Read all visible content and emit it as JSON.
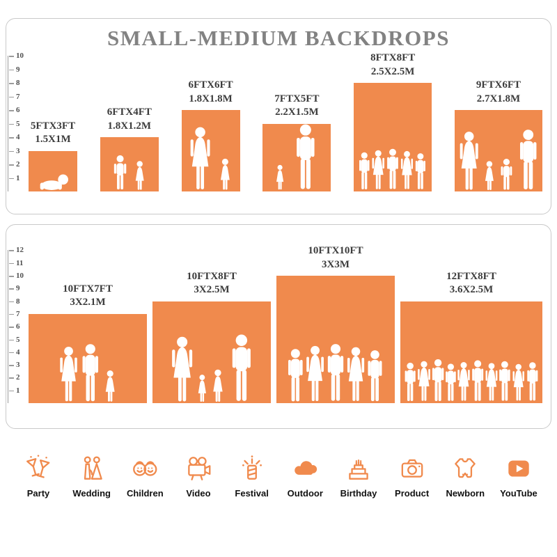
{
  "title": "SMALL-MEDIUM BACKDROPS",
  "colors": {
    "accent": "#F08A4D",
    "panel_border": "#C9C9C9",
    "title_gray": "#828282",
    "label_dark": "#3C3C3C"
  },
  "top_panel": {
    "ruler": [
      "1",
      "2",
      "3",
      "4",
      "5",
      "6",
      "7",
      "8",
      "9",
      "10"
    ],
    "backdrops": [
      {
        "label_ft": "5FTX3FT",
        "label_m": "1.5X1M",
        "w_ft": 5,
        "h_ft": 3
      },
      {
        "label_ft": "6FTX4FT",
        "label_m": "1.8X1.2M",
        "w_ft": 6,
        "h_ft": 4
      },
      {
        "label_ft": "6FTX6FT",
        "label_m": "1.8X1.8M",
        "w_ft": 6,
        "h_ft": 6
      },
      {
        "label_ft": "7FTX5FT",
        "label_m": "2.2X1.5M",
        "w_ft": 7,
        "h_ft": 5
      },
      {
        "label_ft": "8FTX8FT",
        "label_m": "2.5X2.5M",
        "w_ft": 8,
        "h_ft": 8
      },
      {
        "label_ft": "9FTX6FT",
        "label_m": "2.7X1.8M",
        "w_ft": 9,
        "h_ft": 6
      }
    ]
  },
  "bottom_panel": {
    "ruler": [
      "1",
      "2",
      "3",
      "4",
      "5",
      "6",
      "7",
      "8",
      "9",
      "10",
      "11",
      "12"
    ],
    "backdrops": [
      {
        "label_ft": "10FTX7FT",
        "label_m": "3X2.1M",
        "w_ft": 10,
        "h_ft": 7
      },
      {
        "label_ft": "10FTX8FT",
        "label_m": "3X2.5M",
        "w_ft": 10,
        "h_ft": 8
      },
      {
        "label_ft": "10FTX10FT",
        "label_m": "3X3M",
        "w_ft": 10,
        "h_ft": 10
      },
      {
        "label_ft": "12FTX8FT",
        "label_m": "3.6X2.5M",
        "w_ft": 12,
        "h_ft": 8
      }
    ]
  },
  "categories": [
    {
      "label": "Party",
      "icon": "party-icon"
    },
    {
      "label": "Wedding",
      "icon": "wedding-icon"
    },
    {
      "label": "Children",
      "icon": "children-icon"
    },
    {
      "label": "Video",
      "icon": "video-icon"
    },
    {
      "label": "Festival",
      "icon": "festival-icon"
    },
    {
      "label": "Outdoor",
      "icon": "outdoor-icon"
    },
    {
      "label": "Birthday",
      "icon": "birthday-icon"
    },
    {
      "label": "Product",
      "icon": "product-icon"
    },
    {
      "label": "Newborn",
      "icon": "newborn-icon"
    },
    {
      "label": "YouTube",
      "icon": "youtube-icon"
    }
  ]
}
